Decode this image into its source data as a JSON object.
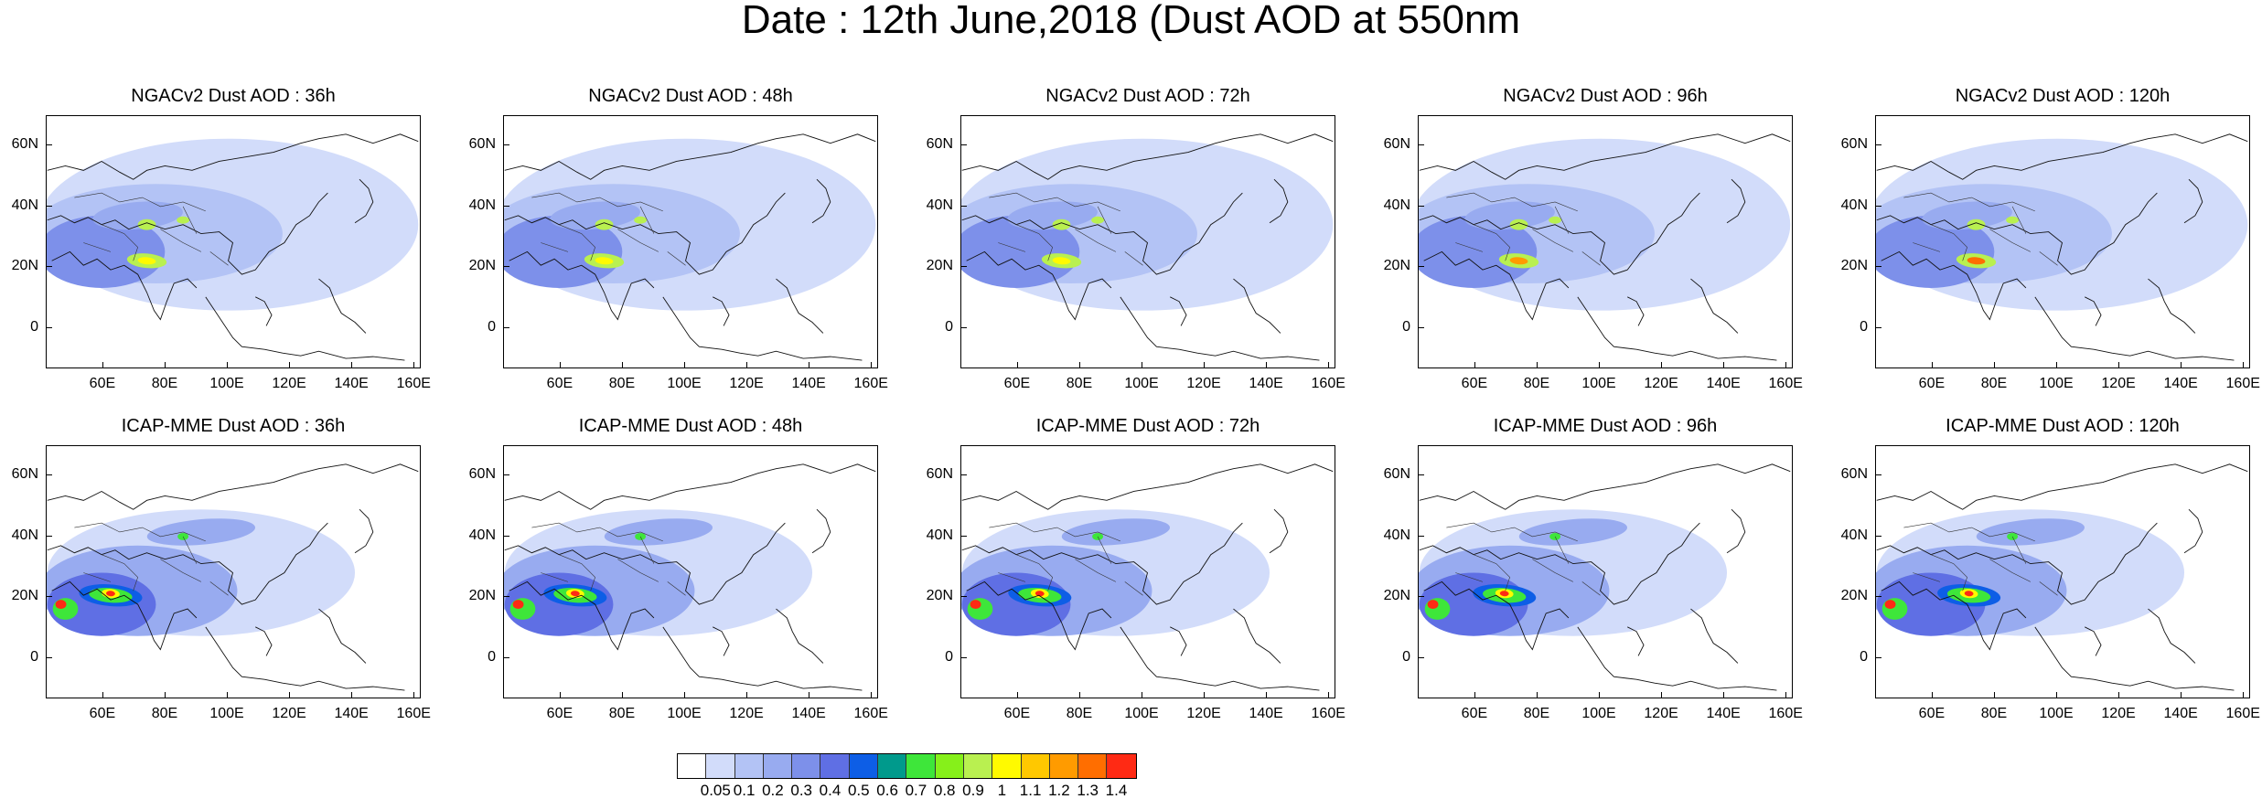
{
  "title": "Date : 12th June,2018 (Dust AOD at 550nm",
  "row_titles": {
    "top": [
      "NGACv2 Dust AOD : 36h",
      "NGACv2 Dust AOD : 48h",
      "NGACv2 Dust AOD : 72h",
      "NGACv2 Dust AOD : 96h",
      "NGACv2 Dust AOD : 120h"
    ],
    "bottom": [
      "ICAP-MME Dust AOD : 36h",
      "ICAP-MME Dust AOD : 48h",
      "ICAP-MME Dust AOD : 72h",
      "ICAP-MME Dust AOD : 96h",
      "ICAP-MME Dust AOD : 120h"
    ]
  },
  "lat_ticks": [
    "60N",
    "40N",
    "20N",
    "0"
  ],
  "lon_ticks": [
    "60E",
    "80E",
    "100E",
    "120E",
    "140E",
    "160E"
  ],
  "colorbar": {
    "labels": [
      "0.05",
      "0.1",
      "0.2",
      "0.3",
      "0.4",
      "0.5",
      "0.6",
      "0.7",
      "0.8",
      "0.9",
      "1",
      "1.1",
      "1.2",
      "1.3",
      "1.4"
    ],
    "colors": [
      "#ffffff",
      "#d2dcfa",
      "#b3c3f5",
      "#98abf0",
      "#7d90ea",
      "#5f6fe4",
      "#0d5ee6",
      "#009a8c",
      "#3ee63a",
      "#86f01a",
      "#b9f050",
      "#fffa00",
      "#ffc800",
      "#ff9b00",
      "#ff6e00",
      "#ff2a14"
    ]
  },
  "map_layers": {
    "top": [
      {
        "background": "#d2dcfa",
        "core": "#b3c3f5",
        "hot": "#b9f050",
        "hot2": "#fffa00"
      },
      {
        "background": "#d2dcfa",
        "core": "#b3c3f5",
        "hot": "#b9f050",
        "hot2": "#fffa00"
      },
      {
        "background": "#d2dcfa",
        "core": "#b3c3f5",
        "hot": "#b9f050",
        "hot2": "#fffa00"
      },
      {
        "background": "#d2dcfa",
        "core": "#b3c3f5",
        "hot": "#b9f050",
        "hot2": "#ff9b00"
      },
      {
        "background": "#d2dcfa",
        "core": "#b3c3f5",
        "hot": "#b9f050",
        "hot2": "#ff6e00"
      }
    ],
    "bottom": [
      {
        "background": "#d2dcfa",
        "core": "#98abf0",
        "hot": "#3ee63a",
        "hot2": "#ff2a14"
      },
      {
        "background": "#d2dcfa",
        "core": "#98abf0",
        "hot": "#3ee63a",
        "hot2": "#ff2a14"
      },
      {
        "background": "#d2dcfa",
        "core": "#98abf0",
        "hot": "#3ee63a",
        "hot2": "#ff2a14"
      },
      {
        "background": "#d2dcfa",
        "core": "#98abf0",
        "hot": "#3ee63a",
        "hot2": "#ff2a14"
      },
      {
        "background": "#d2dcfa",
        "core": "#98abf0",
        "hot": "#3ee63a",
        "hot2": "#ff2a14"
      }
    ]
  }
}
